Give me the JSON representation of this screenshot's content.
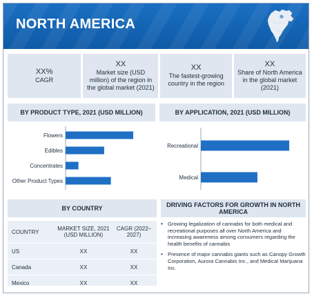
{
  "header": {
    "title": "NORTH AMERICA"
  },
  "stats": [
    {
      "value": "XX%",
      "label": "CAGR"
    },
    {
      "value": "XX",
      "label": "Market size (USD million) of the region in the global market (2021)"
    },
    {
      "value": "XX",
      "label": "The fastest-growing country in the region"
    },
    {
      "value": "XX",
      "label": "Share of North America in the global market (2021)"
    }
  ],
  "sections": {
    "product_type": "BY PRODUCT TYPE, 2021 (USD MILLION)",
    "application": "BY APPLICATION, 2021 (USD MILLION)",
    "country": "BY COUNTRY",
    "drivers": "DRIVING FACTORS FOR GROWTH IN NORTH AMERICA"
  },
  "colors": {
    "accent": "#1f6fc5",
    "panel": "#dfe6ef"
  },
  "chart_data": [
    {
      "type": "bar",
      "orientation": "horizontal",
      "title": "BY PRODUCT TYPE, 2021 (USD MILLION)",
      "categories": [
        "Flowers",
        "Edibles",
        "Concentrates",
        "Other Product Types"
      ],
      "values": [
        100,
        57,
        19,
        67
      ],
      "xlim": [
        0,
        100
      ],
      "grid": false
    },
    {
      "type": "bar",
      "orientation": "horizontal",
      "title": "BY APPLICATION, 2021 (USD MILLION)",
      "categories": [
        "Recreational",
        "Medical"
      ],
      "values": [
        100,
        64
      ],
      "xlim": [
        0,
        100
      ],
      "grid": false
    }
  ],
  "country_table": {
    "headers": [
      "COUNTRY",
      "MARKET SIZE, 2021 (USD MILLION)",
      "CAGR (2022–2027)"
    ],
    "rows": [
      [
        "US",
        "XX",
        "XX"
      ],
      [
        "Canada",
        "XX",
        "XX"
      ],
      [
        "Mexico",
        "XX",
        "XX"
      ]
    ]
  },
  "drivers": [
    "Growing legalization of cannabis for both medical and recreational purposes all over North America and increasing awareness among consumers regarding the health benefits of cannabis",
    "Presence of major cannabis giants such as Canopy Growth Corporation, Aurora Cannabis Inc., and Medical Marijuana Inc."
  ]
}
